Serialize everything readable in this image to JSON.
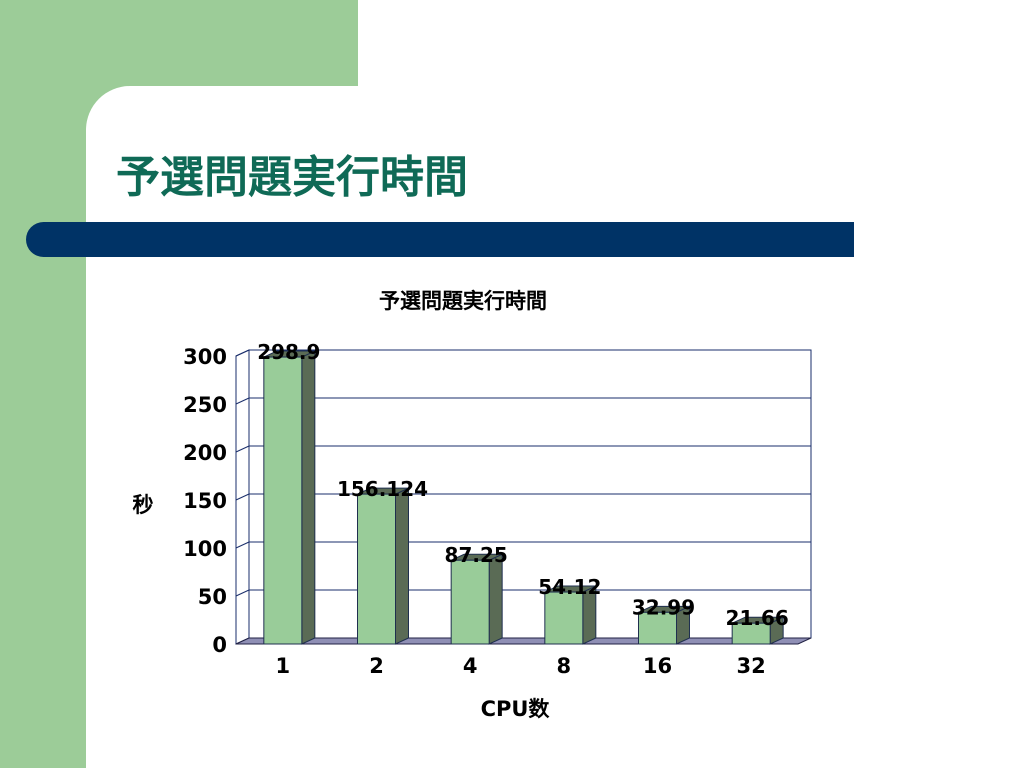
{
  "slide": {
    "title": "予選問題実行時間"
  },
  "colors": {
    "side_panel": "#9ccc98",
    "title_text": "#0f6a56",
    "title_bar": "#003366",
    "bar_front": "#99cc99",
    "bar_side": "#5a6b55",
    "bar_outline": "#1f2f4f",
    "grid_line": "#1a2e6b",
    "floor": "#8f8fb5"
  },
  "chart_data": {
    "type": "bar",
    "title": "予選問題実行時間",
    "xlabel": "CPU数",
    "ylabel": "秒",
    "categories": [
      "1",
      "2",
      "4",
      "8",
      "16",
      "32"
    ],
    "values": [
      298.9,
      156.124,
      87.25,
      54.12,
      32.99,
      21.66
    ],
    "data_labels": [
      "298.9",
      "156.124",
      "87.25",
      "54.12",
      "32.99",
      "21.66"
    ],
    "ylim": [
      0,
      300
    ],
    "yticks": [
      "0",
      "50",
      "100",
      "150",
      "200",
      "250",
      "300"
    ],
    "grid": true,
    "legend": "none",
    "style": "3d-column"
  }
}
